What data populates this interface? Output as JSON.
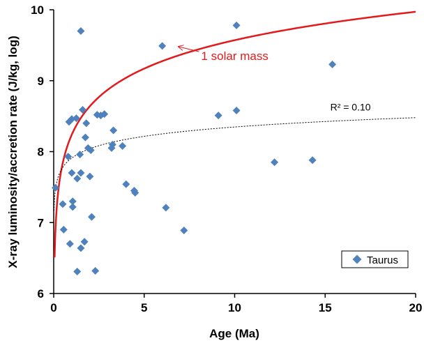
{
  "chart_data": {
    "type": "scatter",
    "title": "",
    "xlabel": "Age (Ma)",
    "ylabel": "X-ray luminosity/accretion rate (J/kg, log)",
    "xlim": [
      0,
      20
    ],
    "ylim": [
      6,
      10
    ],
    "xticks": [
      "0",
      "5",
      "10",
      "15",
      "20"
    ],
    "yticks": [
      "6",
      "7",
      "8",
      "9",
      "10"
    ],
    "grid": false,
    "legend": {
      "position": "bottom-right",
      "entries": [
        "Taurus"
      ]
    },
    "series": [
      {
        "name": "Taurus",
        "marker": "diamond",
        "color": "#4f81bd",
        "points": [
          [
            0.1,
            7.49
          ],
          [
            0.5,
            7.26
          ],
          [
            0.55,
            6.9
          ],
          [
            0.8,
            7.93
          ],
          [
            0.85,
            8.42
          ],
          [
            0.9,
            6.7
          ],
          [
            1.0,
            7.7
          ],
          [
            1.0,
            8.46
          ],
          [
            1.05,
            7.3
          ],
          [
            1.05,
            7.22
          ],
          [
            1.25,
            8.47
          ],
          [
            1.3,
            7.62
          ],
          [
            1.3,
            6.31
          ],
          [
            1.45,
            7.96
          ],
          [
            1.5,
            7.7
          ],
          [
            1.5,
            6.64
          ],
          [
            1.5,
            9.7
          ],
          [
            1.6,
            8.59
          ],
          [
            1.7,
            6.73
          ],
          [
            1.75,
            8.2
          ],
          [
            1.8,
            8.4
          ],
          [
            1.9,
            8.05
          ],
          [
            2.0,
            7.65
          ],
          [
            2.05,
            8.02
          ],
          [
            2.1,
            7.08
          ],
          [
            2.3,
            6.32
          ],
          [
            2.4,
            8.52
          ],
          [
            2.6,
            8.51
          ],
          [
            2.8,
            8.53
          ],
          [
            3.2,
            8.05
          ],
          [
            3.25,
            8.1
          ],
          [
            3.3,
            8.3
          ],
          [
            3.8,
            8.08
          ],
          [
            4.0,
            7.54
          ],
          [
            4.45,
            7.45
          ],
          [
            4.5,
            7.42
          ],
          [
            6.0,
            9.49
          ],
          [
            6.2,
            7.21
          ],
          [
            7.2,
            6.89
          ],
          [
            9.1,
            8.51
          ],
          [
            10.1,
            9.78
          ],
          [
            10.1,
            8.58
          ],
          [
            12.2,
            7.85
          ],
          [
            14.3,
            7.88
          ],
          [
            15.4,
            9.23
          ]
        ]
      }
    ],
    "curves": [
      {
        "label": "1 solar mass",
        "color": "#e31a1c",
        "style": "solid",
        "form": "log",
        "a": 8.24,
        "b": 0.578,
        "x_start": 0.05
      },
      {
        "label": "R² = 0.10",
        "color": "#000000",
        "style": "dotted",
        "form": "log",
        "a": 7.91,
        "b": 0.19,
        "x_start": 0.02
      }
    ],
    "annotations": [
      {
        "text": "1 solar mass",
        "color": "#e31a1c",
        "at": [
          8.15,
          9.35
        ],
        "arrow_to": [
          6.9,
          9.48
        ]
      },
      {
        "text": "R² = 0.10",
        "color": "#000000",
        "at": [
          16.4,
          8.58
        ]
      }
    ]
  }
}
